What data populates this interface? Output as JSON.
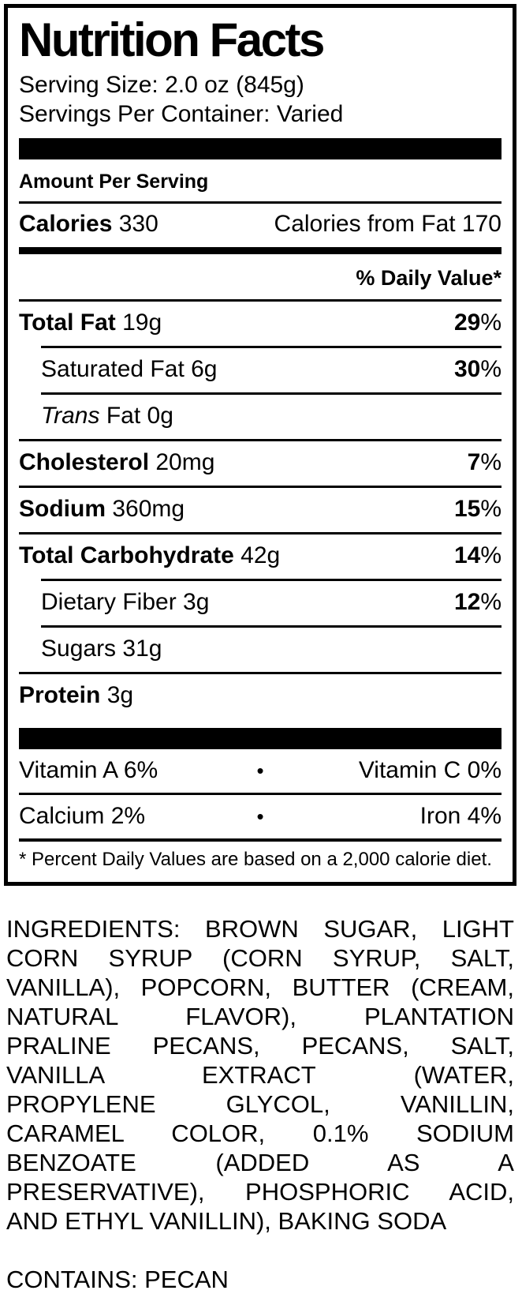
{
  "colors": {
    "text": "#000000",
    "background": "#ffffff"
  },
  "label": {
    "title": "Nutrition Facts",
    "serving_size": "Serving Size: 2.0 oz (845g)",
    "servings_per_container": "Servings Per Container: Varied",
    "amount_per_serving": "Amount Per Serving",
    "calories_label": "Calories",
    "calories_value": "330",
    "calories_from_fat": "Calories from Fat 170",
    "daily_value_header": "% Daily Value*",
    "rows": [
      {
        "name": "Total Fat",
        "amount": "19g",
        "dv": "29",
        "bold": true,
        "indent": false
      },
      {
        "name": "Saturated Fat",
        "amount": "6g",
        "dv": "30",
        "bold": false,
        "indent": true
      },
      {
        "name_italic": "Trans",
        "name": "Fat",
        "amount": "0g",
        "dv": "",
        "bold": false,
        "indent": true
      },
      {
        "name": "Cholesterol",
        "amount": "20mg",
        "dv": "7",
        "bold": true,
        "indent": false
      },
      {
        "name": "Sodium",
        "amount": "360mg",
        "dv": "15",
        "bold": true,
        "indent": false
      },
      {
        "name": "Total Carbohydrate",
        "amount": "42g",
        "dv": "14",
        "bold": true,
        "indent": false
      },
      {
        "name": "Dietary Fiber",
        "amount": "3g",
        "dv": "12",
        "bold": false,
        "indent": true
      },
      {
        "name": "Sugars",
        "amount": "31g",
        "dv": "",
        "bold": false,
        "indent": true
      },
      {
        "name": "Protein",
        "amount": "3g",
        "dv": "",
        "bold": true,
        "indent": false
      }
    ],
    "bullet": "•",
    "micros": [
      {
        "left": "Vitamin A 6%",
        "right": "Vitamin C 0%"
      },
      {
        "left": "Calcium 2%",
        "right": "Iron 4%"
      }
    ],
    "footnote": "* Percent Daily Values are based on a 2,000 calorie diet."
  },
  "ingredients": {
    "lines": [
      "INGREDIENTS: BROWN SUGAR, LIGHT",
      "CORN SYRUP (CORN SYRUP, SALT,",
      "VANILLA), POPCORN, BUTTER (CREAM,",
      "NATURAL FLAVOR), PLANTATION",
      "PRALINE PECANS, PECANS, SALT,",
      "VANILLA EXTRACT (WATER,",
      "PROPYLENE GLYCOL, VANILLIN,",
      "CARAMEL COLOR, 0.1% SODIUM",
      "BENZOATE (ADDED AS A",
      "PRESERVATIVE), PHOSPHORIC ACID,",
      "AND ETHYL VANILLIN), BAKING SODA"
    ]
  },
  "contains": "CONTAINS: PECAN"
}
